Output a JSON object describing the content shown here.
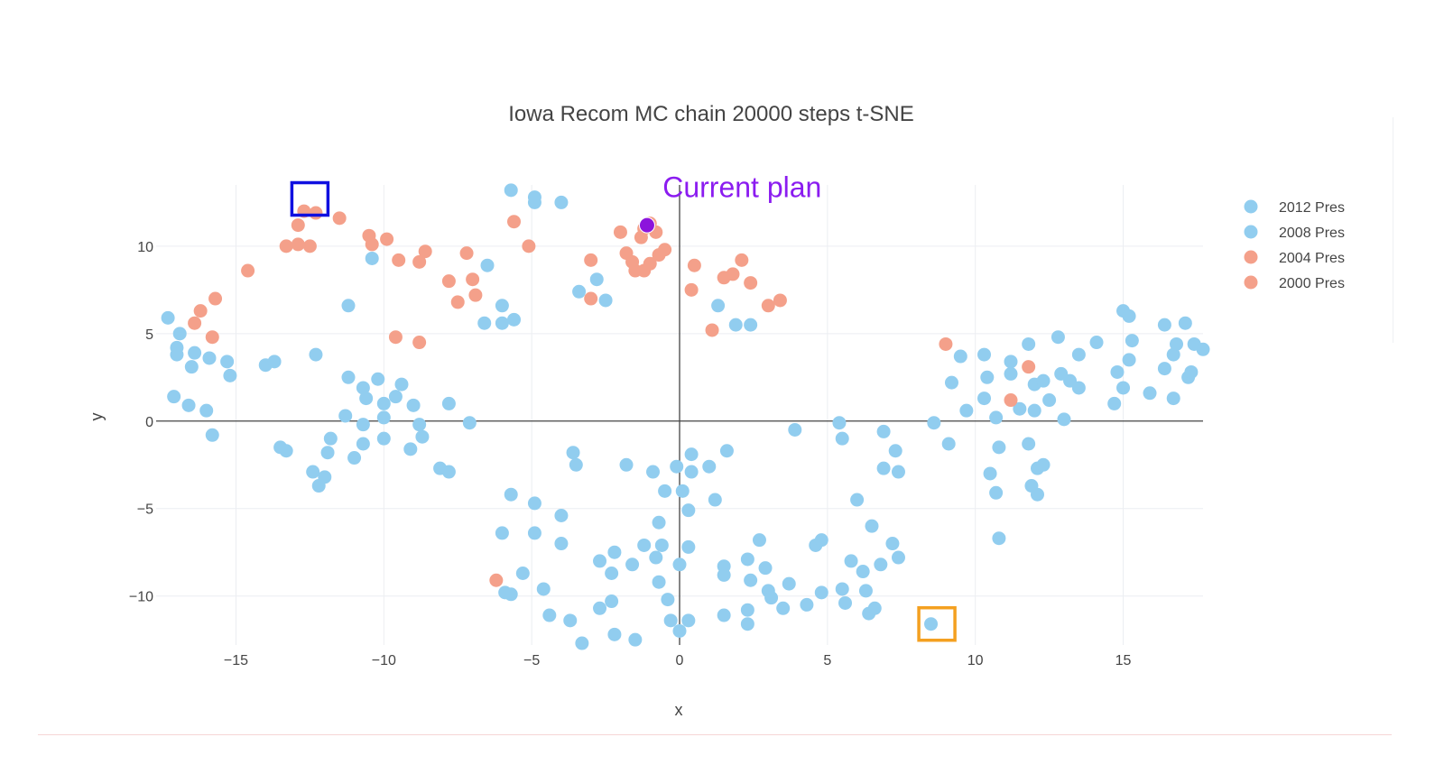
{
  "chart_data": {
    "type": "scatter",
    "title": "Iowa Recom MC chain 20000 steps t-SNE",
    "xlabel": "x",
    "ylabel": "y",
    "xlim": [
      -17.7,
      17.7
    ],
    "ylim": [
      -12.8,
      13.5
    ],
    "xticks": [
      -15,
      -10,
      -5,
      0,
      5,
      10,
      15
    ],
    "yticks": [
      -10,
      -5,
      0,
      5,
      10
    ],
    "xtick_labels": [
      "−15",
      "−10",
      "−5",
      "0",
      "5",
      "10",
      "15"
    ],
    "ytick_labels": [
      "−10",
      "−5",
      "0",
      "5",
      "10"
    ],
    "grid": true,
    "legend_position": "top-right",
    "annotation": {
      "text": "Current plan",
      "x": -1.0,
      "y": 11.2,
      "color": "#8b1cf0"
    },
    "markers": [
      {
        "name": "blue-box",
        "x": -12.5,
        "y": 12.7,
        "color": "#1010e0"
      },
      {
        "name": "orange-box",
        "x": 8.7,
        "y": -11.6,
        "color": "#f4a020"
      }
    ],
    "series": [
      {
        "name": "2012 Pres",
        "color": "#91cdef",
        "points": []
      },
      {
        "name": "2008 Pres",
        "color": "#91cdef",
        "points": [
          [
            -17.3,
            5.9
          ],
          [
            -16.9,
            5.0
          ],
          [
            -17.0,
            4.2
          ],
          [
            -17.0,
            3.8
          ],
          [
            -16.5,
            3.1
          ],
          [
            -16.4,
            3.9
          ],
          [
            -15.9,
            3.6
          ],
          [
            -15.3,
            3.4
          ],
          [
            -15.2,
            2.6
          ],
          [
            -14.0,
            3.2
          ],
          [
            -13.7,
            3.4
          ],
          [
            -12.3,
            3.8
          ],
          [
            -17.1,
            1.4
          ],
          [
            -16.6,
            0.9
          ],
          [
            -16.0,
            0.6
          ],
          [
            -15.8,
            -0.8
          ],
          [
            -11.2,
            6.6
          ],
          [
            -10.4,
            9.3
          ],
          [
            -6.5,
            8.9
          ],
          [
            -6.0,
            6.6
          ],
          [
            -6.6,
            5.6
          ],
          [
            -6.0,
            5.6
          ],
          [
            -5.6,
            5.8
          ],
          [
            -3.4,
            7.4
          ],
          [
            -2.8,
            8.1
          ],
          [
            -2.5,
            6.9
          ],
          [
            -6.3,
            13.8
          ],
          [
            -5.7,
            13.2
          ],
          [
            -4.9,
            12.8
          ],
          [
            -4.9,
            12.5
          ],
          [
            -4.0,
            12.5
          ],
          [
            1.3,
            6.6
          ],
          [
            1.9,
            5.5
          ],
          [
            2.4,
            5.5
          ],
          [
            -11.2,
            2.5
          ],
          [
            -10.2,
            2.4
          ],
          [
            -10.7,
            1.9
          ],
          [
            -10.6,
            1.3
          ],
          [
            -9.4,
            2.1
          ],
          [
            -9.6,
            1.4
          ],
          [
            -10.0,
            1.0
          ],
          [
            -9.0,
            0.9
          ],
          [
            -7.8,
            1.0
          ],
          [
            -11.3,
            0.3
          ],
          [
            -10.0,
            0.2
          ],
          [
            -10.7,
            -0.2
          ],
          [
            -8.8,
            -0.2
          ],
          [
            -7.1,
            -0.1
          ],
          [
            -8.7,
            -0.9
          ],
          [
            -10.0,
            -1.0
          ],
          [
            -10.7,
            -1.3
          ],
          [
            -11.8,
            -1.0
          ],
          [
            -9.1,
            -1.6
          ],
          [
            -13.5,
            -1.5
          ],
          [
            -13.3,
            -1.7
          ],
          [
            -11.9,
            -1.8
          ],
          [
            -11.0,
            -2.1
          ],
          [
            -12.4,
            -2.9
          ],
          [
            -12.0,
            -3.2
          ],
          [
            -12.2,
            -3.7
          ],
          [
            -8.1,
            -2.7
          ],
          [
            -7.8,
            -2.9
          ],
          [
            -3.6,
            -1.8
          ],
          [
            -3.5,
            -2.5
          ],
          [
            -1.8,
            -2.5
          ],
          [
            -0.9,
            -2.9
          ],
          [
            -0.1,
            -2.6
          ],
          [
            0.4,
            -1.9
          ],
          [
            0.4,
            -2.9
          ],
          [
            1.0,
            -2.6
          ],
          [
            1.6,
            -1.7
          ],
          [
            -0.5,
            -4.0
          ],
          [
            0.1,
            -4.0
          ],
          [
            1.2,
            -4.5
          ],
          [
            0.3,
            -5.1
          ],
          [
            -5.7,
            -4.2
          ],
          [
            -4.9,
            -4.7
          ],
          [
            -4.0,
            -5.4
          ],
          [
            -0.7,
            -5.8
          ],
          [
            -6.0,
            -6.4
          ],
          [
            -4.9,
            -6.4
          ],
          [
            -4.0,
            -7.0
          ],
          [
            -1.2,
            -7.1
          ],
          [
            -0.6,
            -7.1
          ],
          [
            0.3,
            -7.2
          ],
          [
            -2.2,
            -7.5
          ],
          [
            -0.8,
            -7.8
          ],
          [
            -2.7,
            -8.0
          ],
          [
            -1.6,
            -8.2
          ],
          [
            -2.3,
            -8.7
          ],
          [
            0.0,
            -8.2
          ],
          [
            -5.3,
            -8.7
          ],
          [
            -0.7,
            -9.2
          ],
          [
            -4.6,
            -9.6
          ],
          [
            -5.9,
            -9.8
          ],
          [
            -5.7,
            -9.9
          ],
          [
            -0.4,
            -10.2
          ],
          [
            -2.3,
            -10.3
          ],
          [
            -2.7,
            -10.7
          ],
          [
            -4.4,
            -11.1
          ],
          [
            -3.7,
            -11.4
          ],
          [
            -0.3,
            -11.4
          ],
          [
            0.3,
            -11.4
          ],
          [
            0.0,
            -12.0
          ],
          [
            -2.2,
            -12.2
          ],
          [
            -1.5,
            -12.5
          ],
          [
            -3.3,
            -12.7
          ],
          [
            1.5,
            -8.3
          ],
          [
            1.5,
            -8.8
          ],
          [
            2.3,
            -7.9
          ],
          [
            2.7,
            -6.8
          ],
          [
            2.4,
            -9.1
          ],
          [
            2.9,
            -8.4
          ],
          [
            3.0,
            -9.7
          ],
          [
            3.1,
            -10.1
          ],
          [
            3.5,
            -10.7
          ],
          [
            3.7,
            -9.3
          ],
          [
            4.6,
            -7.1
          ],
          [
            4.8,
            -6.8
          ],
          [
            4.3,
            -10.5
          ],
          [
            4.8,
            -9.8
          ],
          [
            5.5,
            -9.6
          ],
          [
            5.6,
            -10.4
          ],
          [
            5.8,
            -8.0
          ],
          [
            6.2,
            -8.6
          ],
          [
            6.3,
            -9.7
          ],
          [
            6.4,
            -11.0
          ],
          [
            6.6,
            -10.7
          ],
          [
            6.8,
            -8.2
          ],
          [
            6.5,
            -6.0
          ],
          [
            6.0,
            -4.5
          ],
          [
            7.2,
            -7.0
          ],
          [
            7.4,
            -7.8
          ],
          [
            2.3,
            -10.8
          ],
          [
            2.3,
            -11.6
          ],
          [
            1.5,
            -11.1
          ],
          [
            3.9,
            -0.5
          ],
          [
            5.4,
            -0.1
          ],
          [
            5.5,
            -1.0
          ],
          [
            6.9,
            -0.6
          ],
          [
            7.3,
            -1.7
          ],
          [
            6.9,
            -2.7
          ],
          [
            7.4,
            -2.9
          ],
          [
            8.5,
            -11.6
          ],
          [
            8.6,
            -0.1
          ],
          [
            9.1,
            -1.3
          ],
          [
            9.2,
            2.2
          ],
          [
            9.5,
            3.7
          ],
          [
            9.7,
            0.6
          ],
          [
            10.3,
            1.3
          ],
          [
            10.3,
            3.8
          ],
          [
            10.4,
            2.5
          ],
          [
            10.7,
            0.2
          ],
          [
            10.8,
            -1.5
          ],
          [
            11.2,
            2.7
          ],
          [
            11.2,
            3.4
          ],
          [
            11.5,
            0.7
          ],
          [
            11.8,
            4.4
          ],
          [
            12.0,
            2.1
          ],
          [
            12.0,
            0.6
          ],
          [
            12.3,
            2.3
          ],
          [
            12.5,
            1.2
          ],
          [
            12.8,
            4.8
          ],
          [
            12.9,
            2.7
          ],
          [
            13.0,
            0.1
          ],
          [
            13.2,
            2.3
          ],
          [
            13.5,
            3.8
          ],
          [
            13.5,
            1.9
          ],
          [
            14.1,
            4.5
          ],
          [
            14.7,
            1.0
          ],
          [
            14.8,
            2.8
          ],
          [
            15.0,
            6.3
          ],
          [
            15.0,
            1.9
          ],
          [
            15.2,
            6.0
          ],
          [
            15.2,
            3.5
          ],
          [
            15.3,
            4.6
          ],
          [
            15.9,
            1.6
          ],
          [
            16.4,
            3.0
          ],
          [
            16.4,
            5.5
          ],
          [
            16.7,
            3.8
          ],
          [
            16.7,
            1.3
          ],
          [
            16.8,
            4.4
          ],
          [
            17.1,
            5.6
          ],
          [
            17.2,
            2.5
          ],
          [
            17.3,
            2.8
          ],
          [
            17.4,
            4.4
          ],
          [
            17.7,
            4.1
          ],
          [
            10.5,
            -3.0
          ],
          [
            10.7,
            -4.1
          ],
          [
            10.8,
            -6.7
          ],
          [
            11.8,
            -1.3
          ],
          [
            11.9,
            -3.7
          ],
          [
            12.1,
            -4.2
          ],
          [
            12.1,
            -2.7
          ],
          [
            12.3,
            -2.5
          ]
        ]
      },
      {
        "name": "2004 Pres",
        "color": "#f4a08a",
        "points": []
      },
      {
        "name": "2000 Pres",
        "color": "#f4a08a",
        "points": [
          [
            -17.8,
            6.1
          ],
          [
            -16.2,
            6.3
          ],
          [
            -16.4,
            5.6
          ],
          [
            -15.7,
            7.0
          ],
          [
            -15.8,
            4.8
          ],
          [
            -14.6,
            8.6
          ],
          [
            -13.3,
            10.0
          ],
          [
            -12.9,
            10.1
          ],
          [
            -12.5,
            10.0
          ],
          [
            -12.9,
            11.2
          ],
          [
            -12.7,
            12.0
          ],
          [
            -12.3,
            11.9
          ],
          [
            -11.5,
            11.6
          ],
          [
            -10.5,
            10.6
          ],
          [
            -10.4,
            10.1
          ],
          [
            -9.9,
            10.4
          ],
          [
            -9.5,
            9.2
          ],
          [
            -8.8,
            9.1
          ],
          [
            -8.6,
            9.7
          ],
          [
            -7.2,
            9.6
          ],
          [
            -7.0,
            8.1
          ],
          [
            -7.8,
            8.0
          ],
          [
            -6.9,
            7.2
          ],
          [
            -7.5,
            6.8
          ],
          [
            -9.6,
            4.8
          ],
          [
            -8.8,
            4.5
          ],
          [
            -5.6,
            11.4
          ],
          [
            -5.1,
            10.0
          ],
          [
            -3.0,
            9.2
          ],
          [
            -3.0,
            7.0
          ],
          [
            -2.0,
            10.8
          ],
          [
            -1.8,
            9.6
          ],
          [
            -1.6,
            9.1
          ],
          [
            -1.5,
            8.6
          ],
          [
            -1.3,
            10.5
          ],
          [
            -1.2,
            11.0
          ],
          [
            -1.2,
            8.6
          ],
          [
            -1.0,
            11.3
          ],
          [
            -0.8,
            10.8
          ],
          [
            -1.0,
            9.0
          ],
          [
            -0.7,
            9.5
          ],
          [
            -0.5,
            9.8
          ],
          [
            0.4,
            7.5
          ],
          [
            0.5,
            8.9
          ],
          [
            1.1,
            5.2
          ],
          [
            1.5,
            8.2
          ],
          [
            1.8,
            8.4
          ],
          [
            2.1,
            9.2
          ],
          [
            2.4,
            7.9
          ],
          [
            3.0,
            6.6
          ],
          [
            3.4,
            6.9
          ],
          [
            -6.2,
            -9.1
          ],
          [
            9.0,
            4.4
          ],
          [
            11.2,
            1.2
          ],
          [
            11.8,
            3.1
          ]
        ]
      }
    ],
    "current_point": {
      "x": -1.1,
      "y": 11.2,
      "color": "#8c14dc"
    }
  }
}
